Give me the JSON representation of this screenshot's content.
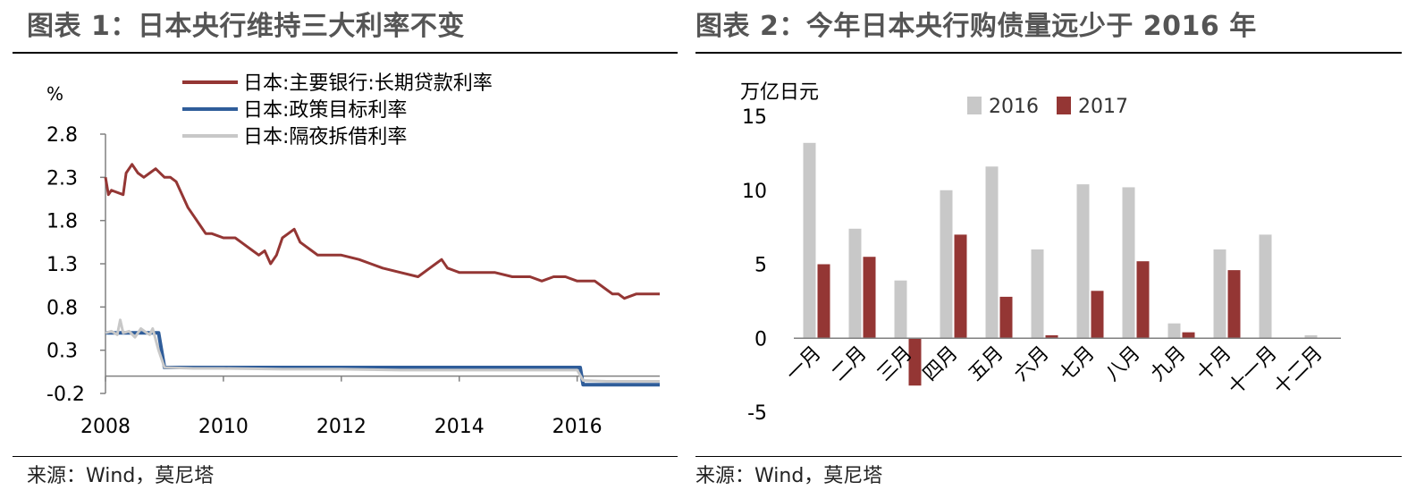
{
  "figure1": {
    "title": "图表 1：日本央行维持三大利率不变",
    "source": "来源：Wind，莫尼塔"
  },
  "figure2": {
    "title": "图表 2：今年日本央行购债量远少于 2016 年",
    "source": "来源：Wind，莫尼塔"
  },
  "chart_data": [
    {
      "type": "line",
      "ylabel": "%",
      "xlabel": "",
      "ylim": [
        -0.2,
        2.8
      ],
      "xlim": [
        2008,
        2017.4
      ],
      "yticks": [
        "2.8",
        "2.3",
        "1.8",
        "1.3",
        "0.8",
        "0.3",
        "-0.2"
      ],
      "ytick_values": [
        2.8,
        2.3,
        1.8,
        1.3,
        0.8,
        0.3,
        -0.2
      ],
      "xticks": [
        "2008",
        "2010",
        "2012",
        "2014",
        "2016"
      ],
      "xtick_values": [
        2008,
        2010,
        2012,
        2014,
        2016
      ],
      "grid": false,
      "legend_position": "top",
      "series": [
        {
          "name": "日本:主要银行:长期贷款利率",
          "color": "#943634",
          "x": [
            2008.0,
            2008.05,
            2008.1,
            2008.3,
            2008.35,
            2008.45,
            2008.55,
            2008.65,
            2008.75,
            2008.85,
            2009.0,
            2009.1,
            2009.2,
            2009.3,
            2009.4,
            2009.5,
            2009.6,
            2009.7,
            2009.8,
            2010.0,
            2010.2,
            2010.3,
            2010.4,
            2010.5,
            2010.6,
            2010.7,
            2010.8,
            2010.9,
            2011.0,
            2011.1,
            2011.2,
            2011.3,
            2011.4,
            2011.5,
            2011.6,
            2011.8,
            2012.0,
            2012.3,
            2012.5,
            2012.7,
            2013.0,
            2013.3,
            2013.5,
            2013.6,
            2013.7,
            2013.8,
            2014.0,
            2014.3,
            2014.6,
            2014.9,
            2015.2,
            2015.4,
            2015.6,
            2015.8,
            2016.0,
            2016.3,
            2016.5,
            2016.6,
            2016.7,
            2016.8,
            2017.0,
            2017.4
          ],
          "y": [
            2.3,
            2.1,
            2.15,
            2.1,
            2.35,
            2.45,
            2.35,
            2.3,
            2.35,
            2.4,
            2.3,
            2.3,
            2.25,
            2.1,
            1.95,
            1.85,
            1.75,
            1.65,
            1.65,
            1.6,
            1.6,
            1.55,
            1.5,
            1.45,
            1.4,
            1.45,
            1.3,
            1.4,
            1.6,
            1.65,
            1.7,
            1.55,
            1.5,
            1.45,
            1.4,
            1.4,
            1.4,
            1.35,
            1.3,
            1.25,
            1.2,
            1.15,
            1.25,
            1.3,
            1.35,
            1.25,
            1.2,
            1.2,
            1.2,
            1.15,
            1.15,
            1.1,
            1.15,
            1.15,
            1.1,
            1.1,
            1.0,
            0.95,
            0.95,
            0.9,
            0.95,
            0.95
          ]
        },
        {
          "name": "日本:政策目标利率",
          "color": "#2F5D9A",
          "x": [
            2008.0,
            2008.9,
            2008.95,
            2009.0,
            2016.05,
            2016.1,
            2017.4
          ],
          "y": [
            0.5,
            0.5,
            0.3,
            0.1,
            0.1,
            -0.1,
            -0.1
          ]
        },
        {
          "name": "日本:隔夜拆借利率",
          "color": "#C8C8C8",
          "x": [
            2008.0,
            2008.1,
            2008.2,
            2008.25,
            2008.3,
            2008.4,
            2008.5,
            2008.6,
            2008.7,
            2008.75,
            2008.8,
            2008.9,
            2009.0,
            2009.5,
            2010.0,
            2011.0,
            2012.0,
            2013.0,
            2014.0,
            2015.0,
            2016.0,
            2016.1,
            2016.5,
            2017.0,
            2017.4
          ],
          "y": [
            0.5,
            0.52,
            0.48,
            0.65,
            0.5,
            0.52,
            0.45,
            0.55,
            0.5,
            0.48,
            0.55,
            0.3,
            0.1,
            0.09,
            0.09,
            0.08,
            0.08,
            0.07,
            0.07,
            0.07,
            0.07,
            -0.05,
            -0.06,
            -0.06,
            -0.06
          ]
        }
      ]
    },
    {
      "type": "bar",
      "ylabel": "万亿日元",
      "xlabel": "",
      "ylim": [
        -5,
        15
      ],
      "yticks": [
        "15",
        "10",
        "5",
        "0",
        "-5"
      ],
      "ytick_values": [
        15,
        10,
        5,
        0,
        -5
      ],
      "grid": false,
      "legend_position": "top",
      "categories": [
        "一月",
        "二月",
        "三月",
        "四月",
        "五月",
        "六月",
        "七月",
        "八月",
        "九月",
        "十月",
        "十一月",
        "十二月"
      ],
      "series": [
        {
          "name": "2016",
          "color": "#C8C8C8",
          "values": [
            13.2,
            7.4,
            3.9,
            10.0,
            11.6,
            6.0,
            10.4,
            10.2,
            1.0,
            6.0,
            7.0,
            0.2
          ]
        },
        {
          "name": "2017",
          "color": "#943634",
          "values": [
            5.0,
            5.5,
            -3.2,
            7.0,
            2.8,
            0.2,
            3.2,
            5.2,
            0.4,
            4.6,
            null,
            null
          ]
        }
      ]
    }
  ]
}
